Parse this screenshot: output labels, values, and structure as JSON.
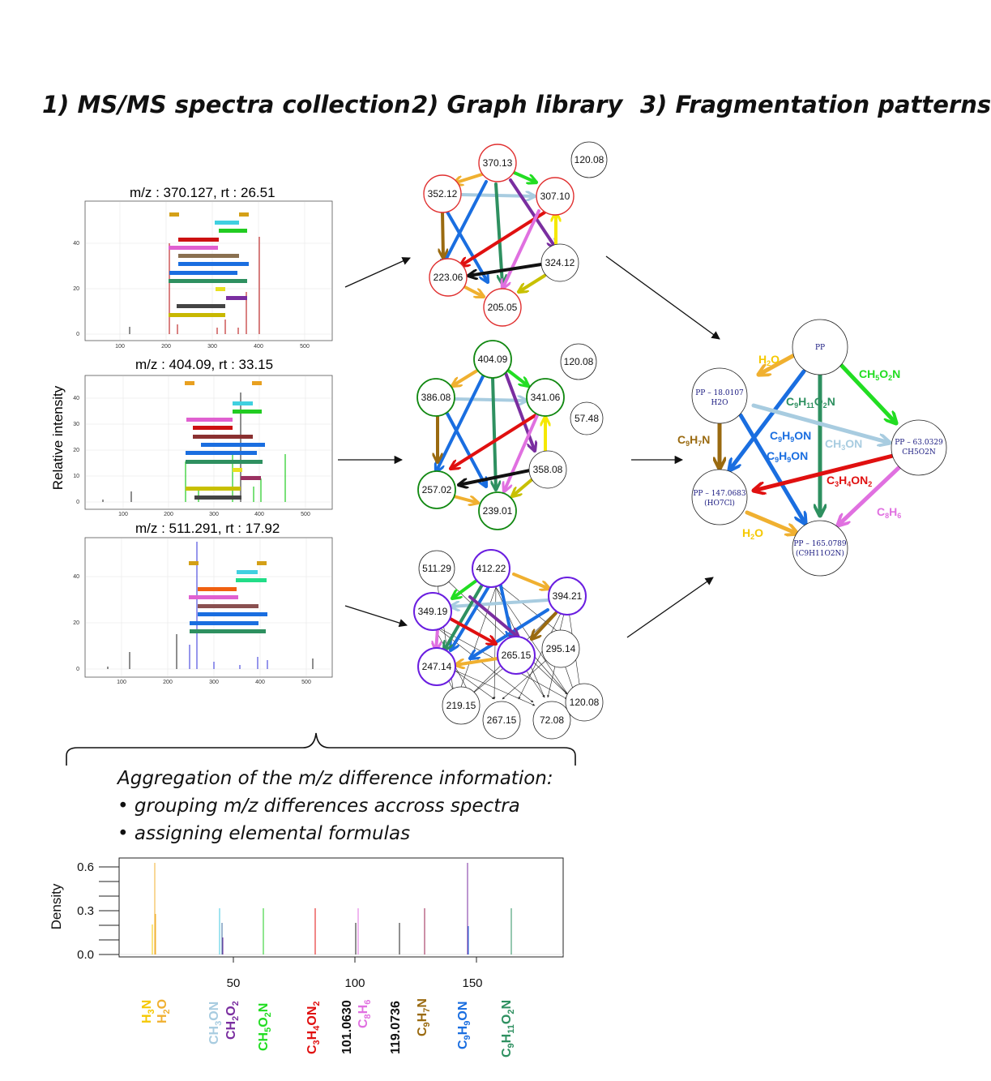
{
  "headings": {
    "step1": "1) MS/MS spectra collection",
    "step2": "2) Graph library",
    "step3": "3) Fragmentation patterns"
  },
  "spectra": [
    {
      "title": "m/z : 370.127, rt : 26.51",
      "yticks": [
        "0",
        "20",
        "40"
      ],
      "xticks": [
        "100",
        "200",
        "300",
        "400",
        "500"
      ]
    },
    {
      "title": "m/z : 404.09, rt : 33.15",
      "yticks": [
        "0",
        "10",
        "20",
        "30",
        "40"
      ],
      "xticks": [
        "100",
        "200",
        "300",
        "400",
        "500"
      ]
    },
    {
      "title": "m/z : 511.291, rt : 17.92",
      "yticks": [
        "0",
        "20",
        "40"
      ],
      "xticks": [
        "100",
        "200",
        "300",
        "400",
        "500"
      ]
    }
  ],
  "spectra_ylabel": "Relative intensity",
  "graphs": [
    {
      "nodes": [
        "370.13",
        "352.12",
        "307.10",
        "324.12",
        "223.06",
        "205.05",
        "120.08"
      ]
    },
    {
      "nodes": [
        "404.09",
        "386.08",
        "341.06",
        "358.08",
        "257.02",
        "239.01",
        "120.08",
        "57.48"
      ]
    },
    {
      "nodes": [
        "511.29",
        "412.22",
        "394.21",
        "349.19",
        "295.14",
        "265.15",
        "247.14",
        "219.15",
        "267.15",
        "72.08",
        "120.08"
      ]
    }
  ],
  "pattern": {
    "nodes": [
      {
        "line1": "PP",
        "line2": ""
      },
      {
        "line1": "PP – 18.0107",
        "line2": "H2O"
      },
      {
        "line1": "PP – 63.0329",
        "line2": "CH5O2N"
      },
      {
        "line1": "PP – 147.0683",
        "line2": "(HO7Cl)"
      },
      {
        "line1": "PP – 165.0789",
        "line2": "(C9H11O2N)"
      }
    ],
    "edge_labels": {
      "h2o_top": "H2O",
      "ch5o2n": "CH5O2N",
      "c9h11o2n": "C9H11O2N",
      "c9h9on_1": "C9H9ON",
      "c9h9on_2": "C9H9ON",
      "ch3on": "CH3ON",
      "c9h7n": "C9H7N",
      "c3h4on2": "C3H4ON2",
      "c8h6": "C8H6",
      "h2o_bottom": "H2O"
    }
  },
  "aggregation": {
    "heading": "Aggregation of the m/z difference information:",
    "bullets": [
      "grouping m/z differences accross spectra",
      "assigning elemental formulas"
    ]
  },
  "density": {
    "ylabel": "Density",
    "yticks": [
      "0.0",
      "0.3",
      "0.6"
    ],
    "xticks": [
      "50",
      "100",
      "150"
    ],
    "formula_labels": [
      "H3N",
      "H2O",
      "CH3ON",
      "CH2O2",
      "CH5O2N",
      "C3H4ON2",
      "101.0630",
      "C8H6",
      "119.0736",
      "C9H7N",
      "C9H9ON",
      "C9H11O2N"
    ]
  },
  "colors": {
    "yellow": "#f5c800",
    "orange": "#f0b030",
    "green": "#22dd22",
    "red": "#e01010",
    "magenta": "#e070e0",
    "brown": "#9a6a10",
    "blue": "#1a6ee0",
    "lightblue": "#a8cce0",
    "purple": "#7a2ea0",
    "teal": "#2e9060",
    "ring_red": "#e03030",
    "ring_green": "#118811",
    "ring_purple": "#6a1ee0",
    "text_navy": "#1a1a80"
  }
}
